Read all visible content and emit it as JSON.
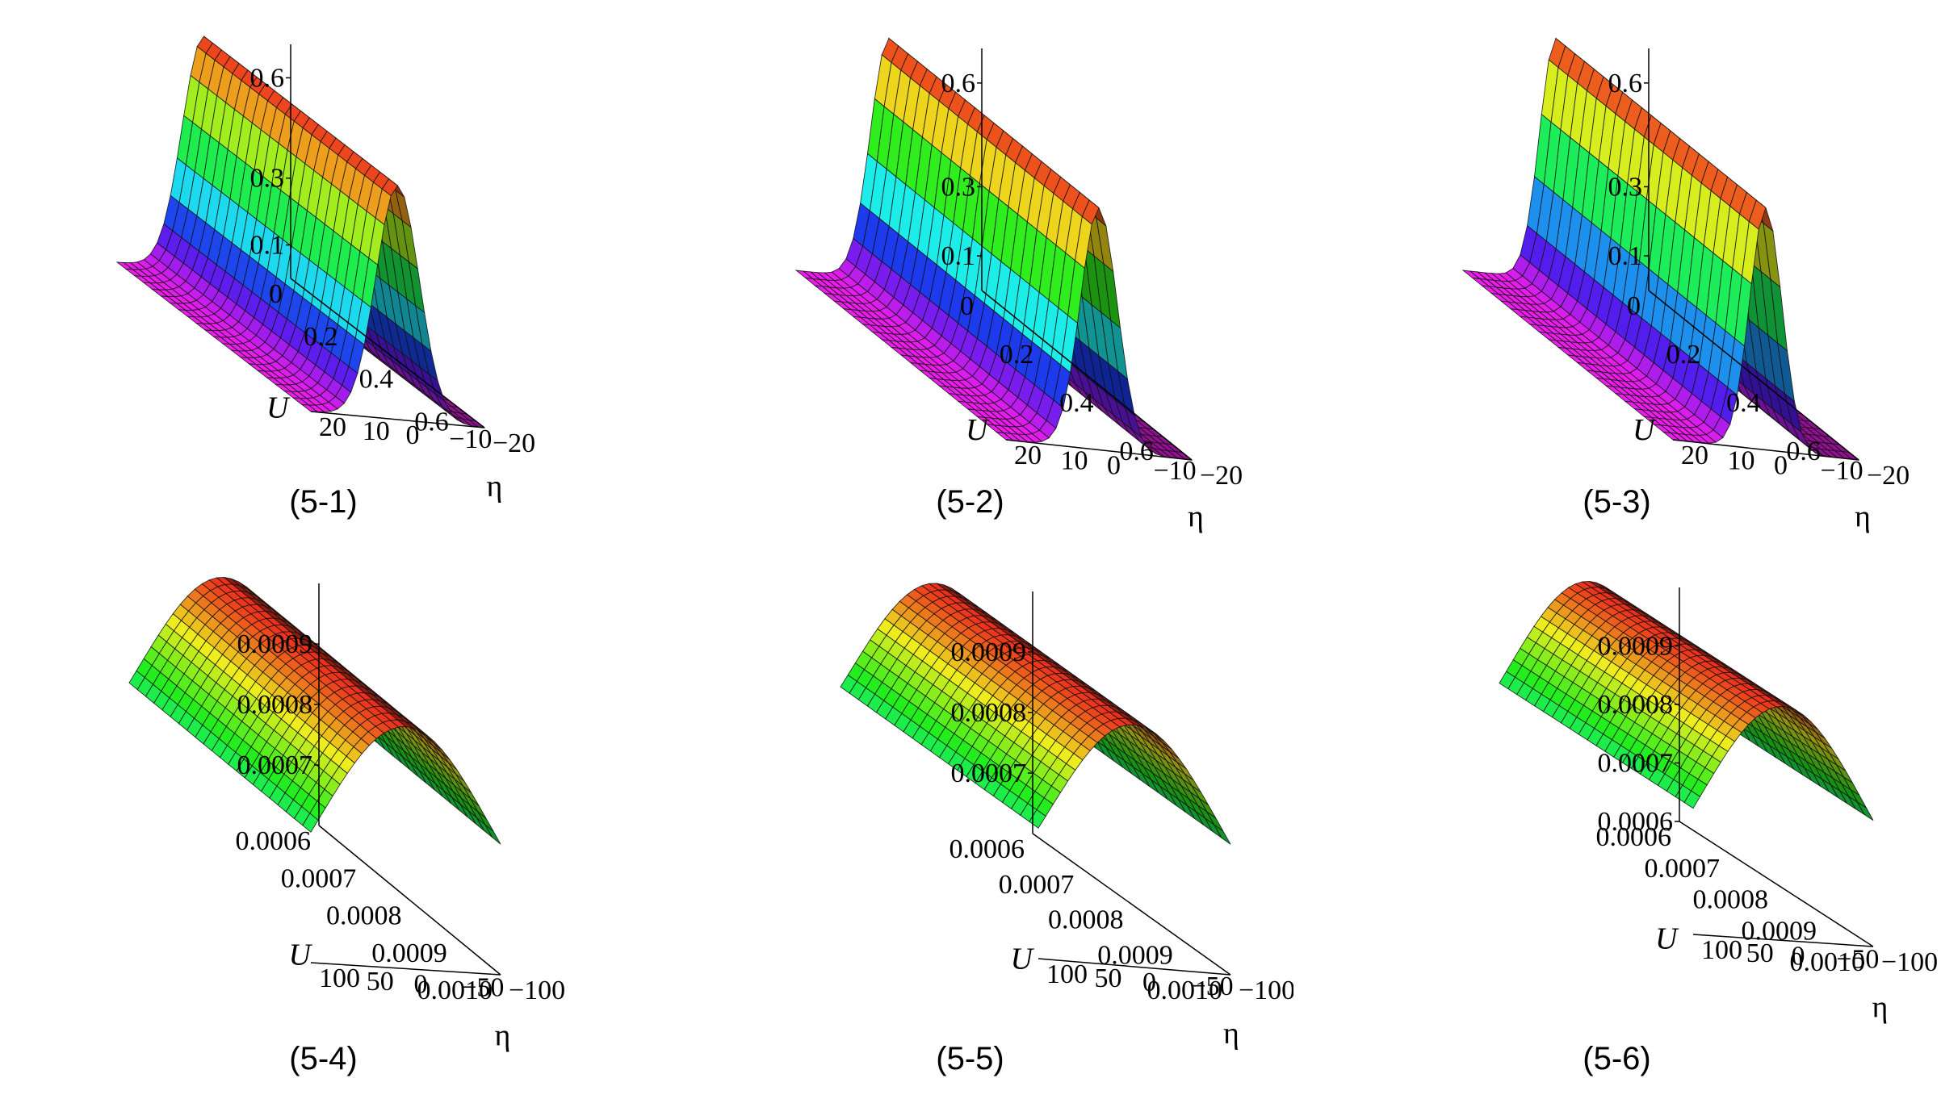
{
  "chart_data": [
    {
      "type": "surface3d",
      "caption": "(5-1)",
      "zlabel": "U",
      "ylabel": "η",
      "xticks": [
        "0",
        "0.2",
        "0.4",
        "0.6"
      ],
      "yticks": [
        "20",
        "10",
        "0",
        "−10",
        "−20"
      ],
      "zticks": [
        "0.1",
        "0.3",
        "0.6"
      ],
      "xlim": [
        0,
        0.7
      ],
      "ylim": [
        -20,
        20
      ],
      "zlim": [
        0,
        0.7
      ],
      "peak": 0.7,
      "base": 0,
      "width": 5
    },
    {
      "type": "surface3d",
      "caption": "(5-2)",
      "zlabel": "U",
      "ylabel": "η",
      "xticks": [
        "0",
        "0.2",
        "0.4",
        "0.6"
      ],
      "yticks": [
        "20",
        "10",
        "0",
        "−10",
        "−20"
      ],
      "zticks": [
        "0.1",
        "0.3",
        "0.6"
      ],
      "xlim": [
        0,
        0.7
      ],
      "ylim": [
        -20,
        20
      ],
      "zlim": [
        0,
        0.7
      ],
      "peak": 0.7,
      "base": 0,
      "width": 4
    },
    {
      "type": "surface3d",
      "caption": "(5-3)",
      "zlabel": "U",
      "ylabel": "η",
      "xticks": [
        "0",
        "0.2",
        "0.4",
        "0.6"
      ],
      "yticks": [
        "20",
        "10",
        "0",
        "−10",
        "−20"
      ],
      "zticks": [
        "0.1",
        "0.3",
        "0.6"
      ],
      "xlim": [
        0,
        0.7
      ],
      "ylim": [
        -20,
        20
      ],
      "zlim": [
        0,
        0.7
      ],
      "peak": 0.7,
      "base": 0,
      "width": 3.5
    },
    {
      "type": "surface3d",
      "caption": "(5-4)",
      "zlabel": "U",
      "ylabel": "η",
      "xticks": [
        "0.0006",
        "0.0007",
        "0.0008",
        "0.0009",
        "0.0010"
      ],
      "yticks": [
        "100",
        "50",
        "0",
        "−50",
        "−100"
      ],
      "zticks": [
        "0.0007",
        "0.0008",
        "0.0009"
      ],
      "xlim": [
        0.0006,
        0.001
      ],
      "ylim": [
        -100,
        100
      ],
      "zlim": [
        0.0006,
        0.001
      ],
      "peak": 0.001,
      "base": 0.0006,
      "width": 90
    },
    {
      "type": "surface3d",
      "caption": "(5-5)",
      "zlabel": "U",
      "ylabel": "η",
      "xticks": [
        "0.0006",
        "0.0007",
        "0.0008",
        "0.0009",
        "0.0010"
      ],
      "yticks": [
        "100",
        "50",
        "0",
        "−50",
        "−100"
      ],
      "zticks": [
        "0.0007",
        "0.0008",
        "0.0009"
      ],
      "xlim": [
        0.0006,
        0.001
      ],
      "ylim": [
        -100,
        100
      ],
      "zlim": [
        0.0006,
        0.001
      ],
      "peak": 0.001,
      "base": 0.0006,
      "width": 90
    },
    {
      "type": "surface3d",
      "caption": "(5-6)",
      "zlabel": "U",
      "ylabel": "η",
      "xticks": [
        "0.0006",
        "0.0007",
        "0.0008",
        "0.0009",
        "0.0010"
      ],
      "yticks": [
        "100",
        "50",
        "0",
        "−50",
        "−100"
      ],
      "zticks": [
        "0.0006",
        "0.0007",
        "0.0008",
        "0.0009"
      ],
      "xlim": [
        0.0006,
        0.001
      ],
      "ylim": [
        -100,
        100
      ],
      "zlim": [
        0.0006,
        0.001
      ],
      "peak": 0.001,
      "base": 0.0006,
      "width": 90
    }
  ]
}
